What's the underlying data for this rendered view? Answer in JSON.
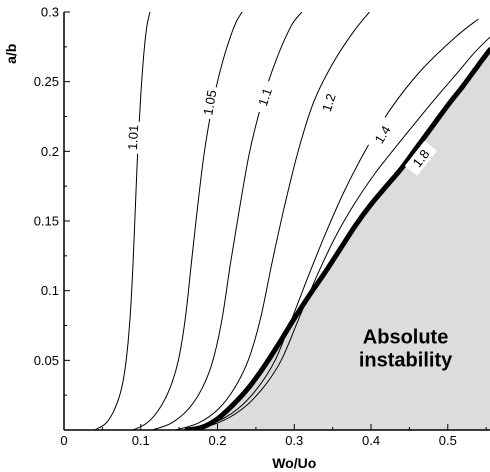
{
  "chart_data": {
    "type": "line",
    "title": "",
    "xlabel": "Wo/Uo",
    "ylabel": "a/b",
    "xlim": [
      0,
      0.555
    ],
    "ylim": [
      0,
      0.3
    ],
    "x_ticks": [
      0,
      0.1,
      0.2,
      0.3,
      0.4,
      0.5
    ],
    "x_tick_labels": [
      "0",
      "0.1",
      "0.2",
      "0.3",
      "0.4",
      "0.5"
    ],
    "y_ticks": [
      0.05,
      0.1,
      0.15,
      0.2,
      0.25,
      0.3
    ],
    "y_tick_labels": [
      "0.05",
      "0.1",
      "0.15",
      "0.2",
      "0.25",
      "0.3"
    ],
    "grid": false,
    "legend": "none",
    "series": [
      {
        "name": "1.01",
        "label_at": [
          0.09,
          0.21
        ],
        "points": [
          [
            0.04,
            0
          ],
          [
            0.055,
            0.005
          ],
          [
            0.066,
            0.015
          ],
          [
            0.075,
            0.03
          ],
          [
            0.081,
            0.05
          ],
          [
            0.086,
            0.08
          ],
          [
            0.09,
            0.12
          ],
          [
            0.093,
            0.16
          ],
          [
            0.096,
            0.2
          ],
          [
            0.1,
            0.24
          ],
          [
            0.104,
            0.27
          ],
          [
            0.108,
            0.29
          ],
          [
            0.112,
            0.3
          ]
        ]
      },
      {
        "name": "1.05",
        "label_at": [
          0.19,
          0.235
        ],
        "points": [
          [
            0.09,
            0
          ],
          [
            0.108,
            0.005
          ],
          [
            0.124,
            0.015
          ],
          [
            0.138,
            0.03
          ],
          [
            0.149,
            0.05
          ],
          [
            0.158,
            0.08
          ],
          [
            0.166,
            0.12
          ],
          [
            0.174,
            0.16
          ],
          [
            0.183,
            0.2
          ],
          [
            0.194,
            0.235
          ],
          [
            0.207,
            0.265
          ],
          [
            0.222,
            0.29
          ],
          [
            0.232,
            0.3
          ]
        ]
      },
      {
        "name": "1.1",
        "label_at": [
          0.262,
          0.239
        ],
        "points": [
          [
            0.115,
            0
          ],
          [
            0.14,
            0.005
          ],
          [
            0.162,
            0.015
          ],
          [
            0.18,
            0.03
          ],
          [
            0.194,
            0.05
          ],
          [
            0.206,
            0.08
          ],
          [
            0.217,
            0.12
          ],
          [
            0.229,
            0.16
          ],
          [
            0.242,
            0.2
          ],
          [
            0.258,
            0.235
          ],
          [
            0.276,
            0.265
          ],
          [
            0.296,
            0.29
          ],
          [
            0.31,
            0.3
          ]
        ]
      },
      {
        "name": "1.2",
        "label_at": [
          0.345,
          0.235
        ],
        "points": [
          [
            0.145,
            0
          ],
          [
            0.175,
            0.005
          ],
          [
            0.201,
            0.015
          ],
          [
            0.222,
            0.03
          ],
          [
            0.24,
            0.05
          ],
          [
            0.256,
            0.08
          ],
          [
            0.271,
            0.12
          ],
          [
            0.287,
            0.16
          ],
          [
            0.305,
            0.2
          ],
          [
            0.325,
            0.235
          ],
          [
            0.349,
            0.262
          ],
          [
            0.376,
            0.285
          ],
          [
            0.398,
            0.3
          ]
        ]
      },
      {
        "name": "1.4",
        "label_at": [
          0.415,
          0.212
        ],
        "points": [
          [
            0.16,
            0
          ],
          [
            0.195,
            0.005
          ],
          [
            0.226,
            0.015
          ],
          [
            0.252,
            0.03
          ],
          [
            0.275,
            0.05
          ],
          [
            0.297,
            0.08
          ],
          [
            0.318,
            0.11
          ],
          [
            0.34,
            0.14
          ],
          [
            0.364,
            0.17
          ],
          [
            0.392,
            0.2
          ],
          [
            0.425,
            0.23
          ],
          [
            0.465,
            0.258
          ],
          [
            0.51,
            0.282
          ],
          [
            0.54,
            0.295
          ]
        ]
      },
      {
        "name": "1.8",
        "label_at": [
          0.465,
          0.195
        ],
        "points": [
          [
            0.165,
            0
          ],
          [
            0.2,
            0.005
          ],
          [
            0.232,
            0.015
          ],
          [
            0.259,
            0.03
          ],
          [
            0.283,
            0.05
          ],
          [
            0.306,
            0.08
          ],
          [
            0.329,
            0.11
          ],
          [
            0.353,
            0.138
          ],
          [
            0.378,
            0.162
          ],
          [
            0.405,
            0.184
          ],
          [
            0.432,
            0.203
          ],
          [
            0.46,
            0.222
          ],
          [
            0.487,
            0.24
          ],
          [
            0.512,
            0.256
          ],
          [
            0.535,
            0.271
          ],
          [
            0.555,
            0.282
          ]
        ]
      }
    ],
    "boundary": {
      "name": "absolute instability boundary",
      "points": [
        [
          0.16,
          0
        ],
        [
          0.18,
          0.002
        ],
        [
          0.2,
          0.008
        ],
        [
          0.22,
          0.018
        ],
        [
          0.24,
          0.03
        ],
        [
          0.26,
          0.045
        ],
        [
          0.28,
          0.062
        ],
        [
          0.3,
          0.08
        ],
        [
          0.32,
          0.097
        ],
        [
          0.34,
          0.113
        ],
        [
          0.36,
          0.13
        ],
        [
          0.38,
          0.147
        ],
        [
          0.4,
          0.162
        ],
        [
          0.42,
          0.175
        ],
        [
          0.44,
          0.188
        ],
        [
          0.46,
          0.203
        ],
        [
          0.48,
          0.218
        ],
        [
          0.5,
          0.233
        ],
        [
          0.52,
          0.247
        ],
        [
          0.54,
          0.262
        ],
        [
          0.555,
          0.273
        ]
      ]
    },
    "region_label": [
      "Absolute",
      "instability"
    ],
    "region_label_at": [
      0.445,
      0.062
    ],
    "colors": {
      "region_fill": "#dcdcdc",
      "line": "#000000"
    }
  }
}
